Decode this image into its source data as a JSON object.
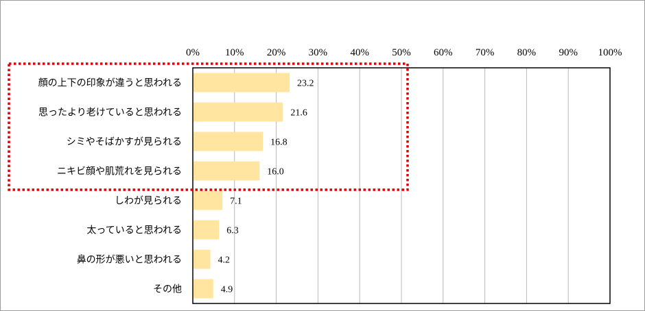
{
  "chart_data": {
    "type": "bar",
    "orientation": "horizontal",
    "categories": [
      "顔の上下の印象が違うと思われる",
      "思ったより老けていると思われる",
      "シミやそばかすが見られる",
      "ニキビ顔や肌荒れを見られる",
      "しわが見られる",
      "太っていると思われる",
      "鼻の形が悪いと思われる",
      "その他"
    ],
    "values": [
      23.2,
      21.6,
      16.8,
      16.0,
      7.1,
      6.3,
      4.2,
      4.9
    ],
    "value_labels": [
      "23.2",
      "21.6",
      "16.8",
      "16.0",
      "7.1",
      "6.3",
      "4.2",
      "4.9"
    ],
    "xlim": [
      0,
      100
    ],
    "x_ticks": [
      0,
      10,
      20,
      30,
      40,
      50,
      60,
      70,
      80,
      90,
      100
    ],
    "x_tick_labels": [
      "0%",
      "10%",
      "20%",
      "30%",
      "40%",
      "50%",
      "60%",
      "70%",
      "80%",
      "90%",
      "100%"
    ],
    "x_axis_position": "top",
    "grid": true,
    "legend": "none",
    "highlight": {
      "categories_from_index": 0,
      "categories_to_index": 3,
      "style": "red dotted box"
    },
    "title": "",
    "xlabel": "",
    "ylabel": ""
  },
  "colors": {
    "bar": "#ffe5a0",
    "grid": "#b8b8b8",
    "axis": "#000000",
    "highlight": "#e00000",
    "text": "#000000"
  }
}
